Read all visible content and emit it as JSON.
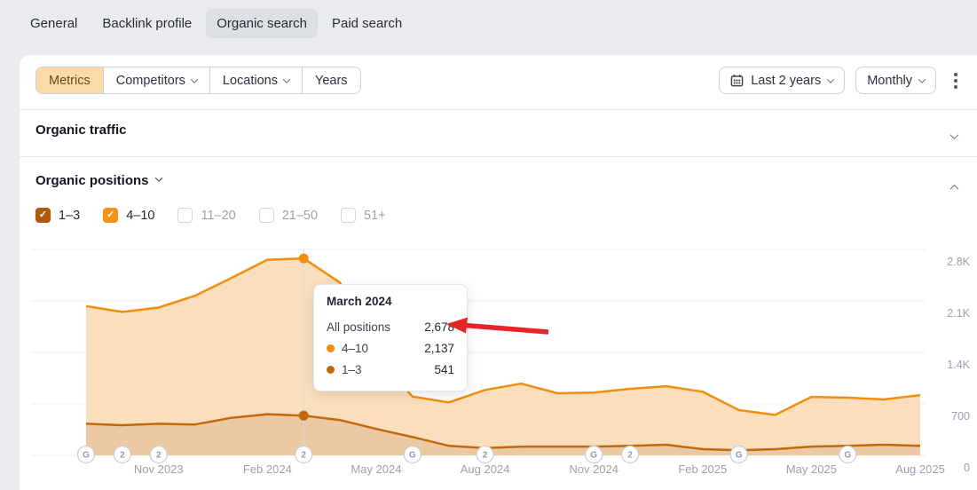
{
  "tabs": {
    "items": [
      {
        "label": "General",
        "selected": false
      },
      {
        "label": "Backlink profile",
        "selected": false
      },
      {
        "label": "Organic search",
        "selected": true
      },
      {
        "label": "Paid search",
        "selected": false
      }
    ]
  },
  "toolbar": {
    "segments": [
      {
        "label": "Metrics",
        "selected": true,
        "has_dropdown": false
      },
      {
        "label": "Competitors",
        "selected": false,
        "has_dropdown": true
      },
      {
        "label": "Locations",
        "selected": false,
        "has_dropdown": true
      },
      {
        "label": "Years",
        "selected": false,
        "has_dropdown": false
      }
    ],
    "date_range_label": "Last 2 years",
    "interval_label": "Monthly",
    "more_menu": "kebab-menu"
  },
  "sections": {
    "organic_traffic": {
      "title": "Organic traffic",
      "collapsed": true
    },
    "organic_positions": {
      "title": "Organic positions",
      "collapsed": false
    }
  },
  "position_filters": {
    "items": [
      {
        "label": "1–3",
        "checked": true,
        "color": "#b2580a"
      },
      {
        "label": "4–10",
        "checked": true,
        "color": "#f59114"
      },
      {
        "label": "11–20",
        "checked": false,
        "color": null
      },
      {
        "label": "21–50",
        "checked": false,
        "color": null
      },
      {
        "label": "51+",
        "checked": false,
        "color": null
      }
    ]
  },
  "tooltip": {
    "title": "March 2024",
    "rows": [
      {
        "label": "All positions",
        "value": "2,678",
        "dot": null
      },
      {
        "label": "4–10",
        "value": "2,137",
        "dot": "#f28d0e"
      },
      {
        "label": "1–3",
        "value": "541",
        "dot": "#c2690c"
      }
    ],
    "annotation": "red-arrow-pointing-at-2678"
  },
  "chart_data": {
    "type": "area",
    "stacked": true,
    "title": "Organic positions over time",
    "legend_position": "none",
    "grid": true,
    "y_max": 2800,
    "y_ticks": [
      "2.8K",
      "2.1K",
      "1.4K",
      "700",
      "0"
    ],
    "categories": [
      "Sep 2023",
      "Oct 2023",
      "Nov 2023",
      "Dec 2023",
      "Jan 2024",
      "Feb 2024",
      "Mar 2024",
      "Apr 2024",
      "May 2024",
      "Jun 2024",
      "Jul 2024",
      "Aug 2024",
      "Sep 2024",
      "Oct 2024",
      "Nov 2024",
      "Dec 2024",
      "Jan 2025",
      "Feb 2025",
      "Mar 2025",
      "Apr 2025",
      "May 2025",
      "Jun 2025",
      "Jul 2025",
      "Aug 2025"
    ],
    "series": [
      {
        "name": "1–3",
        "color": "#c2690c",
        "fill": "#eac9a3",
        "values": [
          430,
          410,
          430,
          420,
          510,
          560,
          541,
          480,
          360,
          250,
          130,
          100,
          120,
          120,
          120,
          130,
          145,
          85,
          70,
          85,
          120,
          130,
          145,
          130
        ]
      },
      {
        "name": "4–10",
        "color": "#f28d0e",
        "fill": "#fbdfbd",
        "values": [
          1600,
          1540,
          1580,
          1750,
          1900,
          2100,
          2137,
          1870,
          990,
          550,
          590,
          790,
          855,
          725,
          735,
          775,
          795,
          780,
          545,
          465,
          675,
          655,
          615,
          690
        ]
      }
    ],
    "hover_index": 6,
    "x_tick_indices": [
      2,
      5,
      8,
      11,
      14,
      17,
      20,
      23
    ],
    "x_tick_labels": [
      "Nov 2023",
      "Feb 2024",
      "May 2024",
      "Aug 2024",
      "Nov 2024",
      "Feb 2025",
      "May 2025",
      "Aug 2025"
    ],
    "event_badges": [
      {
        "month": 0,
        "label": "G"
      },
      {
        "month": 1,
        "label": "2"
      },
      {
        "month": 2,
        "label": "2"
      },
      {
        "month": 6,
        "label": "2"
      },
      {
        "month": 9,
        "label": "G"
      },
      {
        "month": 11,
        "label": "2"
      },
      {
        "month": 14,
        "label": "G"
      },
      {
        "month": 15,
        "label": "2"
      },
      {
        "month": 18,
        "label": "G"
      },
      {
        "month": 21,
        "label": "G"
      }
    ]
  }
}
